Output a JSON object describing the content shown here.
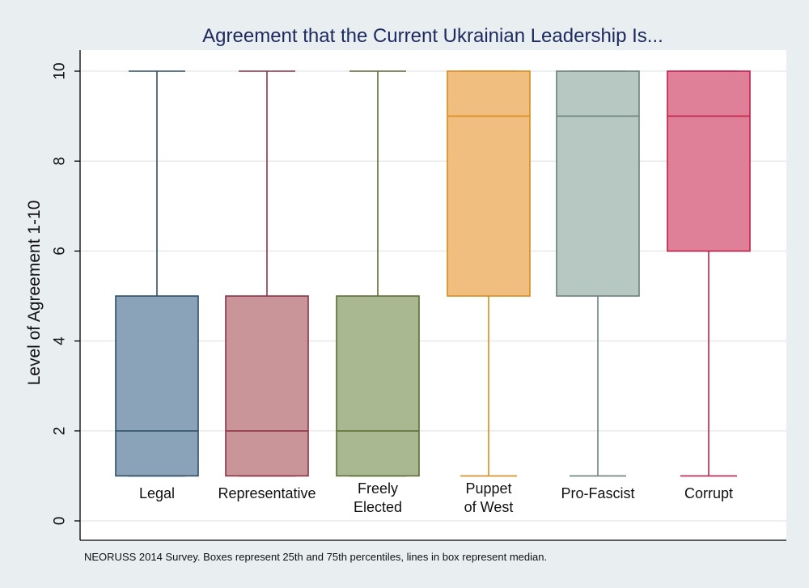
{
  "chart_data": {
    "type": "box",
    "title": "Agreement that the Current Ukrainian Leadership Is...",
    "ylabel": "Level of Agreement 1-10",
    "xlabel": "",
    "ylim": [
      0,
      10.5
    ],
    "yticks": [
      0,
      2,
      4,
      6,
      8,
      10
    ],
    "grid": true,
    "note": "NEORUSS 2014 Survey. Boxes represent 25th and 75th percentiles, lines in box represent median.",
    "categories": [
      {
        "label_lines": [
          "Legal"
        ],
        "min": 1,
        "q1": 1,
        "median": 2,
        "q3": 5,
        "max": 10,
        "fill": "#8aa3b8",
        "stroke": "#2f4f66"
      },
      {
        "label_lines": [
          "Representative"
        ],
        "min": 1,
        "q1": 1,
        "median": 2,
        "q3": 5,
        "max": 10,
        "fill": "#c99598",
        "stroke": "#8a3347"
      },
      {
        "label_lines": [
          "Freely",
          "Elected"
        ],
        "min": 1,
        "q1": 1,
        "median": 2,
        "q3": 5,
        "max": 10,
        "fill": "#aab891",
        "stroke": "#5a6e35"
      },
      {
        "label_lines": [
          "Puppet",
          "of West"
        ],
        "min": 1,
        "q1": 5,
        "median": 9,
        "q3": 10,
        "max": 10,
        "fill": "#f0bf80",
        "stroke": "#d98c1c"
      },
      {
        "label_lines": [
          "Pro-Fascist"
        ],
        "min": 1,
        "q1": 5,
        "median": 9,
        "q3": 10,
        "max": 10,
        "fill": "#b7c8c3",
        "stroke": "#6b807b"
      },
      {
        "label_lines": [
          "Corrupt"
        ],
        "min": 1,
        "q1": 6,
        "median": 9,
        "q3": 10,
        "max": 10,
        "fill": "#e08098",
        "stroke": "#c21f4a"
      }
    ],
    "colors": {
      "background": "#e9eef1",
      "plot_background": "#ffffff",
      "grid": "#e8eaea",
      "title": "#1c2a5e",
      "axis": "#000000"
    }
  }
}
